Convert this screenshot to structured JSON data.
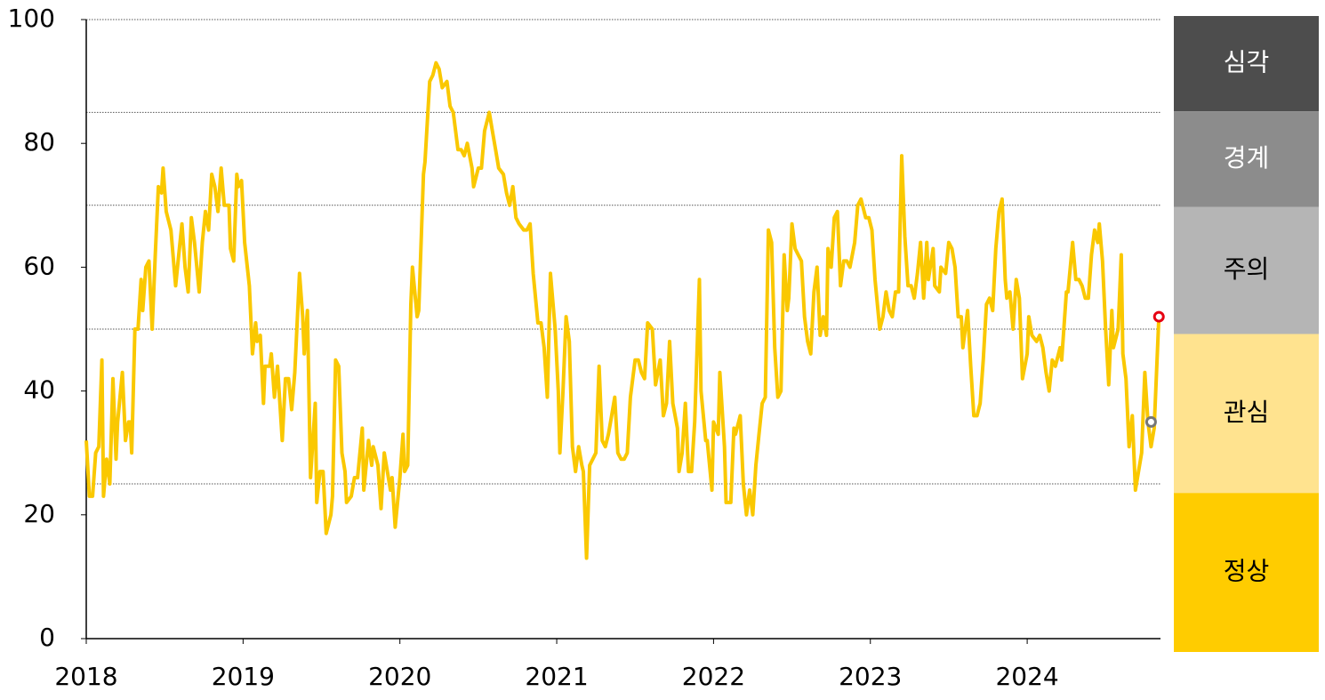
{
  "chart_data": {
    "type": "line",
    "x": [
      2018.0,
      2018.02,
      2018.04,
      2018.06,
      2018.08,
      2018.1,
      2018.11,
      2018.13,
      2018.15,
      2018.17,
      2018.19,
      2018.2,
      2018.23,
      2018.25,
      2018.27,
      2018.28,
      2018.29,
      2018.31,
      2018.33,
      2018.35,
      2018.36,
      2018.38,
      2018.4,
      2018.42,
      2018.44,
      2018.46,
      2018.48,
      2018.49,
      2018.51,
      2018.54,
      2018.57,
      2018.59,
      2018.61,
      2018.63,
      2018.65,
      2018.67,
      2018.69,
      2018.72,
      2018.74,
      2018.76,
      2018.78,
      2018.8,
      2018.82,
      2018.84,
      2018.86,
      2018.88,
      2018.91,
      2018.92,
      2018.94,
      2018.96,
      2018.97,
      2018.99,
      2019.01,
      2019.04,
      2019.06,
      2019.08,
      2019.09,
      2019.11,
      2019.13,
      2019.14,
      2019.17,
      2019.18,
      2019.2,
      2019.22,
      2019.25,
      2019.27,
      2019.29,
      2019.31,
      2019.33,
      2019.36,
      2019.38,
      2019.39,
      2019.41,
      2019.43,
      2019.46,
      2019.47,
      2019.49,
      2019.51,
      2019.53,
      2019.56,
      2019.57,
      2019.59,
      2019.61,
      2019.63,
      2019.65,
      2019.66,
      2019.69,
      2019.71,
      2019.73,
      2019.76,
      2019.77,
      2019.8,
      2019.82,
      2019.83,
      2019.86,
      2019.88,
      2019.9,
      2019.92,
      2019.94,
      2019.95,
      2019.97,
      2020.0,
      2020.02,
      2020.03,
      2020.05,
      2020.07,
      2020.08,
      2020.11,
      2020.12,
      2020.15,
      2020.16,
      2020.19,
      2020.21,
      2020.23,
      2020.25,
      2020.27,
      2020.3,
      2020.32,
      2020.34,
      2020.37,
      2020.39,
      2020.41,
      2020.43,
      2020.46,
      2020.47,
      2020.5,
      2020.52,
      2020.54,
      2020.57,
      2020.59,
      2020.61,
      2020.63,
      2020.66,
      2020.68,
      2020.7,
      2020.72,
      2020.74,
      2020.76,
      2020.79,
      2020.81,
      2020.83,
      2020.85,
      2020.88,
      2020.9,
      2020.92,
      2020.94,
      2020.96,
      2020.99,
      2021.01,
      2021.02,
      2021.04,
      2021.06,
      2021.08,
      2021.1,
      2021.12,
      2021.14,
      2021.16,
      2021.17,
      2021.19,
      2021.21,
      2021.23,
      2021.25,
      2021.27,
      2021.29,
      2021.31,
      2021.33,
      2021.35,
      2021.37,
      2021.39,
      2021.41,
      2021.43,
      2021.45,
      2021.47,
      2021.5,
      2021.52,
      2021.54,
      2021.56,
      2021.58,
      2021.61,
      2021.63,
      2021.66,
      2021.68,
      2021.7,
      2021.72,
      2021.74,
      2021.77,
      2021.78,
      2021.8,
      2021.82,
      2021.84,
      2021.86,
      2021.88,
      2021.91,
      2021.92,
      2021.95,
      2021.96,
      2021.99,
      2022.0,
      2022.03,
      2022.04,
      2022.07,
      2022.08,
      2022.11,
      2022.13,
      2022.14,
      2022.17,
      2022.19,
      2022.21,
      2022.23,
      2022.25,
      2022.27,
      2022.29,
      2022.31,
      2022.33,
      2022.35,
      2022.37,
      2022.39,
      2022.41,
      2022.43,
      2022.45,
      2022.47,
      2022.48,
      2022.5,
      2022.52,
      2022.54,
      2022.56,
      2022.58,
      2022.6,
      2022.62,
      2022.64,
      2022.66,
      2022.68,
      2022.7,
      2022.72,
      2022.73,
      2022.75,
      2022.77,
      2022.79,
      2022.81,
      2022.83,
      2022.85,
      2022.87,
      2022.9,
      2022.92,
      2022.94,
      2022.97,
      2022.99,
      2023.01,
      2023.03,
      2023.06,
      2023.08,
      2023.1,
      2023.12,
      2023.14,
      2023.16,
      2023.18,
      2023.2,
      2023.22,
      2023.24,
      2023.26,
      2023.28,
      2023.3,
      2023.32,
      2023.34,
      2023.36,
      2023.37,
      2023.4,
      2023.41,
      2023.44,
      2023.45,
      2023.48,
      2023.5,
      2023.52,
      2023.54,
      2023.56,
      2023.58,
      2023.59,
      2023.62,
      2023.64,
      2023.66,
      2023.68,
      2023.7,
      2023.72,
      2023.74,
      2023.76,
      2023.78,
      2023.8,
      2023.82,
      2023.84,
      2023.86,
      2023.87,
      2023.89,
      2023.91,
      2023.93,
      2023.95,
      2023.97,
      2024.0,
      2024.01,
      2024.03,
      2024.06,
      2024.08,
      2024.1,
      2024.12,
      2024.14,
      2024.16,
      2024.18,
      2024.21,
      2024.22,
      2024.25,
      2024.26,
      2024.29,
      2024.31,
      2024.33,
      2024.35,
      2024.37,
      2024.39,
      2024.41,
      2024.43,
      2024.45,
      2024.46,
      2024.48,
      2024.5,
      2024.52,
      2024.54,
      2024.55,
      2024.58,
      2024.6,
      2024.61,
      2024.63,
      2024.65,
      2024.67,
      2024.69,
      2024.71,
      2024.73,
      2024.75,
      2024.77,
      2024.79,
      2024.81,
      2024.84
    ],
    "series": [
      {
        "color": "#fac800",
        "values": [
          32,
          23,
          23,
          30,
          31,
          45,
          23,
          29,
          25,
          42,
          29,
          35,
          43,
          32,
          35,
          35,
          30,
          50,
          50,
          58,
          53,
          60,
          61,
          50,
          62,
          73,
          72,
          76,
          69,
          66,
          57,
          62,
          67,
          60,
          56,
          68,
          64,
          56,
          64,
          69,
          66,
          75,
          73,
          69,
          76,
          70,
          70,
          63,
          61,
          75,
          73,
          74,
          64,
          57,
          46,
          51,
          48,
          49,
          38,
          44,
          44,
          46,
          39,
          44,
          32,
          42,
          42,
          37,
          43,
          59,
          52,
          46,
          53,
          26,
          38,
          22,
          27,
          27,
          17,
          20,
          23,
          45,
          44,
          30,
          27,
          22,
          23,
          26,
          26,
          34,
          24,
          32,
          28,
          31,
          28,
          21,
          30,
          27,
          24,
          26,
          18,
          26,
          33,
          27,
          28,
          54,
          60,
          52,
          53,
          75,
          77,
          90,
          91,
          93,
          92,
          89,
          90,
          86,
          85,
          79,
          79,
          78,
          80,
          76,
          73,
          76,
          76,
          82,
          85,
          82,
          79,
          76,
          75,
          72,
          70,
          73,
          68,
          67,
          66,
          66,
          67,
          59,
          51,
          51,
          47,
          39,
          59,
          50,
          40,
          30,
          40,
          52,
          48,
          31,
          27,
          31,
          28,
          27,
          13,
          28,
          29,
          30,
          44,
          32,
          31,
          33,
          36,
          39,
          30,
          29,
          29,
          30,
          39,
          45,
          45,
          43,
          42,
          51,
          50,
          41,
          45,
          36,
          38,
          48,
          38,
          34,
          27,
          30,
          38,
          27,
          27,
          35,
          58,
          40,
          32,
          32,
          24,
          35,
          33,
          43,
          31,
          22,
          22,
          34,
          33,
          36,
          25,
          20,
          24,
          20,
          28,
          33,
          38,
          39,
          66,
          64,
          47,
          39,
          40,
          62,
          53,
          55,
          67,
          63,
          62,
          61,
          52,
          48,
          46,
          56,
          60,
          49,
          52,
          49,
          63,
          60,
          68,
          69,
          57,
          61,
          61,
          60,
          64,
          70,
          71,
          68,
          68,
          66,
          58,
          50,
          52,
          56,
          53,
          52,
          56,
          56,
          78,
          65,
          57,
          57,
          55,
          59,
          64,
          55,
          64,
          58,
          63,
          57,
          56,
          60,
          59,
          64,
          63,
          60,
          52,
          52,
          47,
          53,
          44,
          36,
          36,
          38,
          45,
          54,
          55,
          53,
          63,
          69,
          71,
          58,
          55,
          56,
          50,
          58,
          55,
          42,
          46,
          52,
          49,
          48,
          49,
          47,
          43,
          40,
          45,
          44,
          47,
          45,
          56,
          56,
          64,
          58,
          58,
          57,
          55,
          55,
          62,
          66,
          64,
          67,
          61,
          50,
          41,
          53,
          47,
          50,
          62,
          46,
          42,
          31,
          36,
          24,
          27,
          30,
          43,
          35,
          31,
          34,
          52
        ]
      }
    ],
    "markers": [
      {
        "x": 2024.79,
        "y": 35,
        "color": "#777777"
      },
      {
        "x": 2024.84,
        "y": 52,
        "color": "#e60012"
      }
    ],
    "xlim": [
      2018,
      2024.85
    ],
    "xticks": [
      2018,
      2019,
      2020,
      2021,
      2022,
      2023,
      2024
    ],
    "ylim": [
      0,
      100
    ],
    "yticks": [
      0,
      20,
      40,
      60,
      80,
      100
    ],
    "grid_lines": [
      25,
      50,
      70,
      85,
      100
    ],
    "bands": [
      {
        "name": "심각",
        "range": [
          85,
          100
        ],
        "color": "#4d4d4d",
        "text_color": "#ffffff"
      },
      {
        "name": "경계",
        "range": [
          70,
          85
        ],
        "color": "#8c8c8c",
        "text_color": "#ffffff"
      },
      {
        "name": "주의",
        "range": [
          50,
          70
        ],
        "color": "#b5b5b5",
        "text_color": "#000000"
      },
      {
        "name": "관심",
        "range": [
          25,
          50
        ],
        "color": "#ffe38f",
        "text_color": "#000000"
      },
      {
        "name": "정상",
        "range": [
          0,
          25
        ],
        "color": "#ffcc00",
        "text_color": "#000000"
      }
    ]
  }
}
